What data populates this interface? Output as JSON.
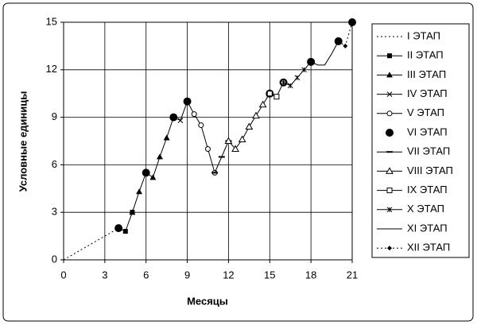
{
  "chart_data": {
    "type": "line",
    "xlabel": "Месяцы",
    "ylabel": "Условные единицы",
    "xlim": [
      0,
      21
    ],
    "xticks": [
      0,
      3,
      6,
      9,
      12,
      15,
      18,
      21
    ],
    "ylim": [
      0,
      15
    ],
    "yticks": [
      0,
      3,
      6,
      9,
      12,
      15
    ],
    "grid": true,
    "legend": "right",
    "series": [
      {
        "name": "I ЭТАП",
        "color": "#000000",
        "line": "dotted",
        "marker": "none",
        "x": [
          0,
          4
        ],
        "values": [
          0,
          2
        ]
      },
      {
        "name": "II ЭТАП",
        "color": "#000000",
        "line": "solid",
        "marker": "square",
        "x": [
          4,
          4.5,
          5
        ],
        "values": [
          2,
          1.8,
          3
        ]
      },
      {
        "name": "III ЭТАП",
        "color": "#000000",
        "line": "solid",
        "marker": "triangle",
        "x": [
          5,
          5.5,
          6,
          6.5,
          7,
          7.5,
          8
        ],
        "values": [
          3,
          4.3,
          5.5,
          5.2,
          6.5,
          7.7,
          9
        ]
      },
      {
        "name": "IV ЭТАП",
        "color": "#000000",
        "line": "solid",
        "marker": "x",
        "x": [
          8,
          8.5,
          9
        ],
        "values": [
          9,
          8.8,
          10
        ]
      },
      {
        "name": "V ЭТАП",
        "color": "#000000",
        "line": "solid",
        "marker": "circle-open",
        "x": [
          9,
          9.5,
          10,
          10.5,
          11
        ],
        "values": [
          10,
          9.2,
          8.5,
          7,
          5.5
        ]
      },
      {
        "name": "VI ЭТАП",
        "color": "#000000",
        "line": "none",
        "marker": "circle",
        "x": [
          4,
          6,
          8,
          9,
          15,
          16,
          18,
          20,
          21
        ],
        "values": [
          2,
          5.5,
          9,
          10,
          10.5,
          11.2,
          12.5,
          13.8,
          15
        ]
      },
      {
        "name": "VII ЭТАП",
        "color": "#000000",
        "line": "solid",
        "marker": "dash",
        "x": [
          11,
          11.5,
          12
        ],
        "values": [
          5.5,
          6.5,
          7.5
        ]
      },
      {
        "name": "VIII ЭТАП",
        "color": "#000000",
        "line": "solid",
        "marker": "triangle-open",
        "x": [
          12,
          12.5,
          13,
          13.5,
          14,
          14.5,
          15
        ],
        "values": [
          7.5,
          7,
          7.6,
          8.4,
          9.1,
          9.8,
          10.5
        ]
      },
      {
        "name": "IX ЭТАП",
        "color": "#000000",
        "line": "solid",
        "marker": "square-open",
        "x": [
          15,
          15.5,
          16
        ],
        "values": [
          10.5,
          10.3,
          11.2
        ]
      },
      {
        "name": "X ЭТАП",
        "color": "#000000",
        "line": "solid",
        "marker": "star",
        "x": [
          16,
          16.5,
          17,
          17.5,
          18
        ],
        "values": [
          11.2,
          11,
          11.5,
          12,
          12.5
        ]
      },
      {
        "name": "XI ЭТАП",
        "color": "#000000",
        "line": "solid",
        "marker": "none",
        "x": [
          18,
          18.5,
          19,
          19.5,
          20
        ],
        "values": [
          12.5,
          12.3,
          12.3,
          13,
          13.8
        ]
      },
      {
        "name": "XII ЭТАП",
        "color": "#000000",
        "line": "dotted",
        "marker": "diamond",
        "x": [
          20,
          20.5,
          21
        ],
        "values": [
          13.8,
          13.5,
          15
        ]
      }
    ]
  }
}
